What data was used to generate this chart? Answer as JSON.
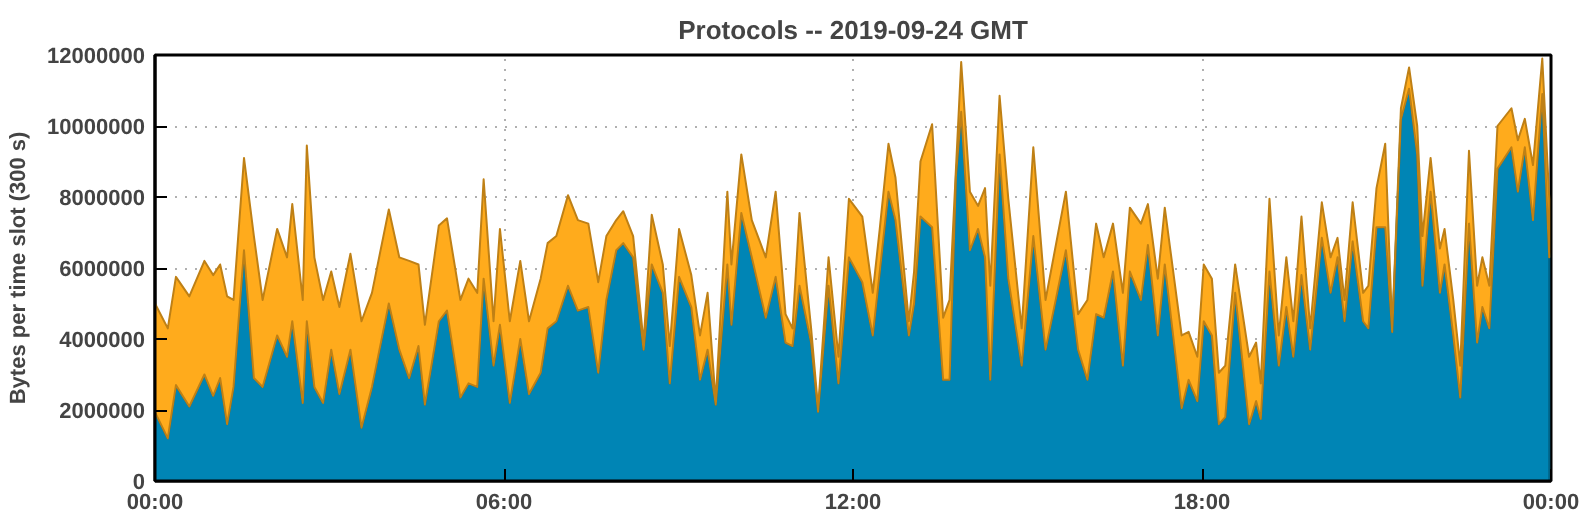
{
  "chart_data": {
    "type": "area",
    "stacked": true,
    "title": "Protocols -- 2019-09-24 GMT",
    "ylabel": "Bytes per time slot (300 s)",
    "x": [
      0,
      0.22,
      0.36,
      0.59,
      0.85,
      1.0,
      1.12,
      1.24,
      1.35,
      1.53,
      1.7,
      1.85,
      2.1,
      2.27,
      2.36,
      2.54,
      2.61,
      2.74,
      2.89,
      3.03,
      3.17,
      3.36,
      3.55,
      3.73,
      4.02,
      4.2,
      4.37,
      4.53,
      4.64,
      4.88,
      5.02,
      5.25,
      5.39,
      5.54,
      5.65,
      5.82,
      5.93,
      6.1,
      6.28,
      6.43,
      6.63,
      6.75,
      6.9,
      7.1,
      7.27,
      7.45,
      7.62,
      7.76,
      7.93,
      8.05,
      8.22,
      8.4,
      8.54,
      8.73,
      8.85,
      9.01,
      9.22,
      9.37,
      9.5,
      9.64,
      9.84,
      9.91,
      10.08,
      10.26,
      10.5,
      10.67,
      10.84,
      10.96,
      11.08,
      11.28,
      11.4,
      11.58,
      11.75,
      11.93,
      12.16,
      12.34,
      12.46,
      12.61,
      12.73,
      12.96,
      13.05,
      13.16,
      13.36,
      13.55,
      13.66,
      13.77,
      13.86,
      14.01,
      14.15,
      14.27,
      14.36,
      14.52,
      14.67,
      14.9,
      15.1,
      15.31,
      15.66,
      15.87,
      16.03,
      16.18,
      16.31,
      16.47,
      16.64,
      16.76,
      16.95,
      17.07,
      17.24,
      17.36,
      17.65,
      17.77,
      17.92,
      18.03,
      18.17,
      18.29,
      18.4,
      18.57,
      18.81,
      18.93,
      19.01,
      19.16,
      19.32,
      19.45,
      19.57,
      19.71,
      19.86,
      20.06,
      20.21,
      20.33,
      20.45,
      20.59,
      20.77,
      20.86,
      21.0,
      21.15,
      21.27,
      21.42,
      21.56,
      21.7,
      21.79,
      21.93,
      22.09,
      22.17,
      22.32,
      22.44,
      22.59,
      22.73,
      22.82,
      22.94,
      23.08,
      23.32,
      23.43,
      23.55,
      23.69,
      23.85,
      23.97
    ],
    "series": [
      {
        "color": "#0085b5",
        "values": [
          1940000,
          1200000,
          2700000,
          2100000,
          3000000,
          2400000,
          2900000,
          1600000,
          2650000,
          6500000,
          2900000,
          2650000,
          4100000,
          3500000,
          4500000,
          2200000,
          4500000,
          2650000,
          2200000,
          3700000,
          2450000,
          3700000,
          1500000,
          2650000,
          5000000,
          3700000,
          2900000,
          3800000,
          2150000,
          4500000,
          4800000,
          2350000,
          2750000,
          2650000,
          5700000,
          3250000,
          4400000,
          2200000,
          4000000,
          2450000,
          3050000,
          4300000,
          4500000,
          5500000,
          4800000,
          4900000,
          3050000,
          5100000,
          6500000,
          6700000,
          6300000,
          3700000,
          6100000,
          5300000,
          2750000,
          5750000,
          4900000,
          2850000,
          3700000,
          2150000,
          6100000,
          4400000,
          7550000,
          6300000,
          4600000,
          5750000,
          3900000,
          3800000,
          5500000,
          3900000,
          1950000,
          5500000,
          2750000,
          6300000,
          5600000,
          4100000,
          5900000,
          8150000,
          7350000,
          4100000,
          5000000,
          7450000,
          7150000,
          2850000,
          2850000,
          8600000,
          10400000,
          6500000,
          7100000,
          6300000,
          2850000,
          9200000,
          5700000,
          3250000,
          6900000,
          3700000,
          6500000,
          3700000,
          2850000,
          4700000,
          4600000,
          5900000,
          3250000,
          5900000,
          5100000,
          6650000,
          4100000,
          6100000,
          2050000,
          2850000,
          2250000,
          4500000,
          4100000,
          1600000,
          1800000,
          5300000,
          1600000,
          2250000,
          1750000,
          5900000,
          3250000,
          4900000,
          3500000,
          5800000,
          3700000,
          6850000,
          5300000,
          6300000,
          4500000,
          6750000,
          4500000,
          4300000,
          7150000,
          7150000,
          4200000,
          10200000,
          11050000,
          9200000,
          5500000,
          8150000,
          5300000,
          6100000,
          4100000,
          2350000,
          7250000,
          3900000,
          4900000,
          4300000,
          8800000,
          9400000,
          8150000,
          9400000,
          7350000,
          10900000,
          6300000
        ]
      },
      {
        "color": "#ffab1c",
        "values": [
          3060000,
          3100000,
          3050000,
          3100000,
          3200000,
          3400000,
          3200000,
          3600000,
          2450000,
          2600000,
          4000000,
          2450000,
          3000000,
          2800000,
          3300000,
          2900000,
          4950000,
          3650000,
          2900000,
          2200000,
          2450000,
          2700000,
          3000000,
          2650000,
          2650000,
          2600000,
          3300000,
          2300000,
          2250000,
          2700000,
          2600000,
          2750000,
          2950000,
          2650000,
          2800000,
          1250000,
          2700000,
          2300000,
          2200000,
          2050000,
          2650000,
          2400000,
          2400000,
          2550000,
          2550000,
          2350000,
          2550000,
          1800000,
          850000,
          900000,
          600000,
          200000,
          1400000,
          800000,
          1050000,
          1350000,
          900000,
          1250000,
          1600000,
          100000,
          2050000,
          1700000,
          1650000,
          1050000,
          1700000,
          2400000,
          800000,
          500000,
          2050000,
          400000,
          100000,
          800000,
          750000,
          1650000,
          1850000,
          1200000,
          1200000,
          1350000,
          1200000,
          400000,
          900000,
          1550000,
          2900000,
          1750000,
          2250000,
          200000,
          1400000,
          1650000,
          650000,
          1950000,
          2650000,
          1650000,
          2250000,
          1050000,
          2500000,
          1400000,
          1650000,
          1000000,
          2250000,
          2550000,
          1700000,
          1350000,
          2050000,
          1800000,
          2150000,
          1150000,
          1600000,
          1600000,
          2050000,
          1350000,
          1250000,
          1600000,
          1600000,
          1450000,
          1450000,
          800000,
          1900000,
          1650000,
          1000000,
          2050000,
          850000,
          1400000,
          1000000,
          1650000,
          600000,
          1000000,
          1000000,
          550000,
          600000,
          1100000,
          800000,
          1200000,
          1100000,
          2350000,
          100000,
          300000,
          600000,
          800000,
          1400000,
          950000,
          1250000,
          1000000,
          1000000,
          900000,
          2050000,
          1600000,
          1400000,
          1200000,
          1200000,
          1100000,
          1450000,
          800000,
          1550000,
          1000000,
          1650000
        ]
      }
    ],
    "xlim": [
      0,
      24
    ],
    "xticks": [
      {
        "value": 0,
        "label": "00:00"
      },
      {
        "value": 6,
        "label": "06:00"
      },
      {
        "value": 12,
        "label": "12:00"
      },
      {
        "value": 18,
        "label": "18:00"
      },
      {
        "value": 24,
        "label": "00:00"
      }
    ],
    "ylim": [
      0,
      12000000
    ],
    "yticks": [
      0,
      2000000,
      4000000,
      6000000,
      8000000,
      10000000,
      12000000
    ],
    "grid": true
  }
}
